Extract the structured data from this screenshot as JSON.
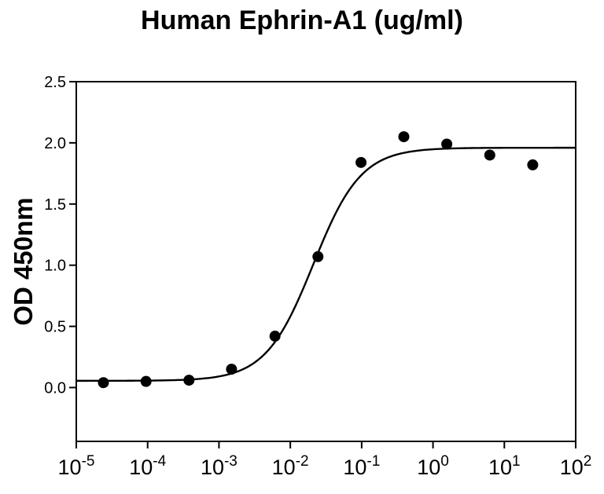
{
  "chart_data": {
    "type": "scatter",
    "title": "Human Ephrin-A1 (ug/ml)",
    "xlabel": "",
    "ylabel": "OD 450nm",
    "x_scale": "log",
    "xlim": [
      1e-05,
      100
    ],
    "ylim_display": [
      -0.44,
      2.5
    ],
    "grid": false,
    "legend": "none",
    "x_tick_base": "10",
    "x_tick_exponents": [
      -5,
      -4,
      -3,
      -2,
      -1,
      0,
      1,
      2
    ],
    "y_tick_labels": [
      "0.0",
      "0.5",
      "1.0",
      "1.5",
      "2.0",
      "2.5"
    ],
    "series": [
      {
        "name": "OD measurements",
        "kind": "scatter",
        "marker": "filled-circle",
        "x": [
          2.4e-05,
          9.5e-05,
          0.00038,
          0.0015,
          0.0061,
          0.0244,
          0.098,
          0.39,
          1.56,
          6.25,
          25
        ],
        "y": [
          0.04,
          0.05,
          0.06,
          0.15,
          0.42,
          1.07,
          1.84,
          2.05,
          1.99,
          1.9,
          1.82
        ]
      },
      {
        "name": "4PL fit curve",
        "kind": "line",
        "model": "4PL",
        "bottom": 0.055,
        "top": 1.96,
        "ec50": 0.021,
        "hill": 1.3
      }
    ],
    "colors": {
      "foreground": "#000000",
      "background": "#ffffff",
      "marker": "#000000",
      "curve": "#000000",
      "axis": "#000000"
    }
  }
}
